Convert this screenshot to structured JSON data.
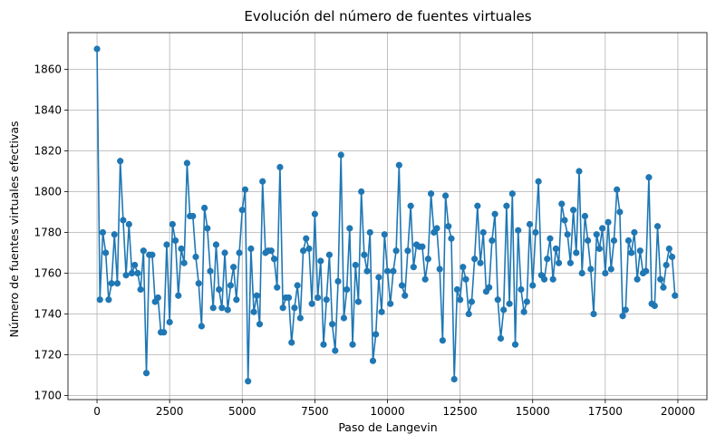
{
  "chart_data": {
    "type": "line",
    "title": "Evolución del número de fuentes virtuales",
    "xlabel": "Paso de Langevin",
    "ylabel": "Número de fuentes virtuales efectivas",
    "xlim": [
      -1000,
      21000
    ],
    "ylim": [
      1698,
      1878
    ],
    "xticks": [
      0,
      2500,
      5000,
      7500,
      10000,
      12500,
      15000,
      17500,
      20000
    ],
    "yticks": [
      1700,
      1720,
      1740,
      1760,
      1780,
      1800,
      1820,
      1840,
      1860
    ],
    "grid": true,
    "marker": "circle",
    "color": "#1f77b4",
    "x_start": 0,
    "x_step": 100,
    "series": [
      {
        "values": [
          1870,
          1747,
          1780,
          1770,
          1747,
          1755,
          1779,
          1755,
          1815,
          1786,
          1759,
          1784,
          1760,
          1764,
          1760,
          1752,
          1771,
          1711,
          1769,
          1769,
          1746,
          1748,
          1731,
          1731,
          1774,
          1736,
          1784,
          1776,
          1749,
          1772,
          1765,
          1814,
          1788,
          1788,
          1768,
          1755,
          1734,
          1792,
          1782,
          1761,
          1743,
          1774,
          1752,
          1743,
          1770,
          1742,
          1754,
          1763,
          1747,
          1770,
          1791,
          1801,
          1707,
          1772,
          1741,
          1749,
          1735,
          1805,
          1770,
          1771,
          1771,
          1767,
          1753,
          1812,
          1743,
          1748,
          1748,
          1726,
          1743,
          1754,
          1738,
          1771,
          1777,
          1772,
          1745,
          1789,
          1748,
          1766,
          1725,
          1747,
          1769,
          1735,
          1722,
          1756,
          1818,
          1738,
          1752,
          1782,
          1725,
          1764,
          1746,
          1800,
          1769,
          1761,
          1780,
          1717,
          1730,
          1758,
          1741,
          1779,
          1761,
          1745,
          1761,
          1771,
          1813,
          1754,
          1749,
          1771,
          1793,
          1763,
          1774,
          1773,
          1773,
          1757,
          1767,
          1799,
          1780,
          1782,
          1762,
          1727,
          1798,
          1783,
          1777,
          1708,
          1752,
          1747,
          1763,
          1757,
          1740,
          1746,
          1767,
          1793,
          1765,
          1780,
          1751,
          1753,
          1776,
          1789,
          1747,
          1728,
          1742,
          1793,
          1745,
          1799,
          1725,
          1781,
          1752,
          1741,
          1746,
          1784,
          1754,
          1780,
          1805,
          1759,
          1757,
          1767,
          1777,
          1757,
          1772,
          1765,
          1794,
          1786,
          1779,
          1765,
          1791,
          1770,
          1810,
          1760,
          1788,
          1776,
          1762,
          1740,
          1779,
          1772,
          1782,
          1760,
          1785,
          1762,
          1776,
          1801,
          1790,
          1739,
          1742,
          1776,
          1770,
          1780,
          1757,
          1771,
          1760,
          1761,
          1807,
          1745,
          1744,
          1783,
          1757,
          1753,
          1764,
          1772,
          1768,
          1749
        ]
      }
    ]
  }
}
